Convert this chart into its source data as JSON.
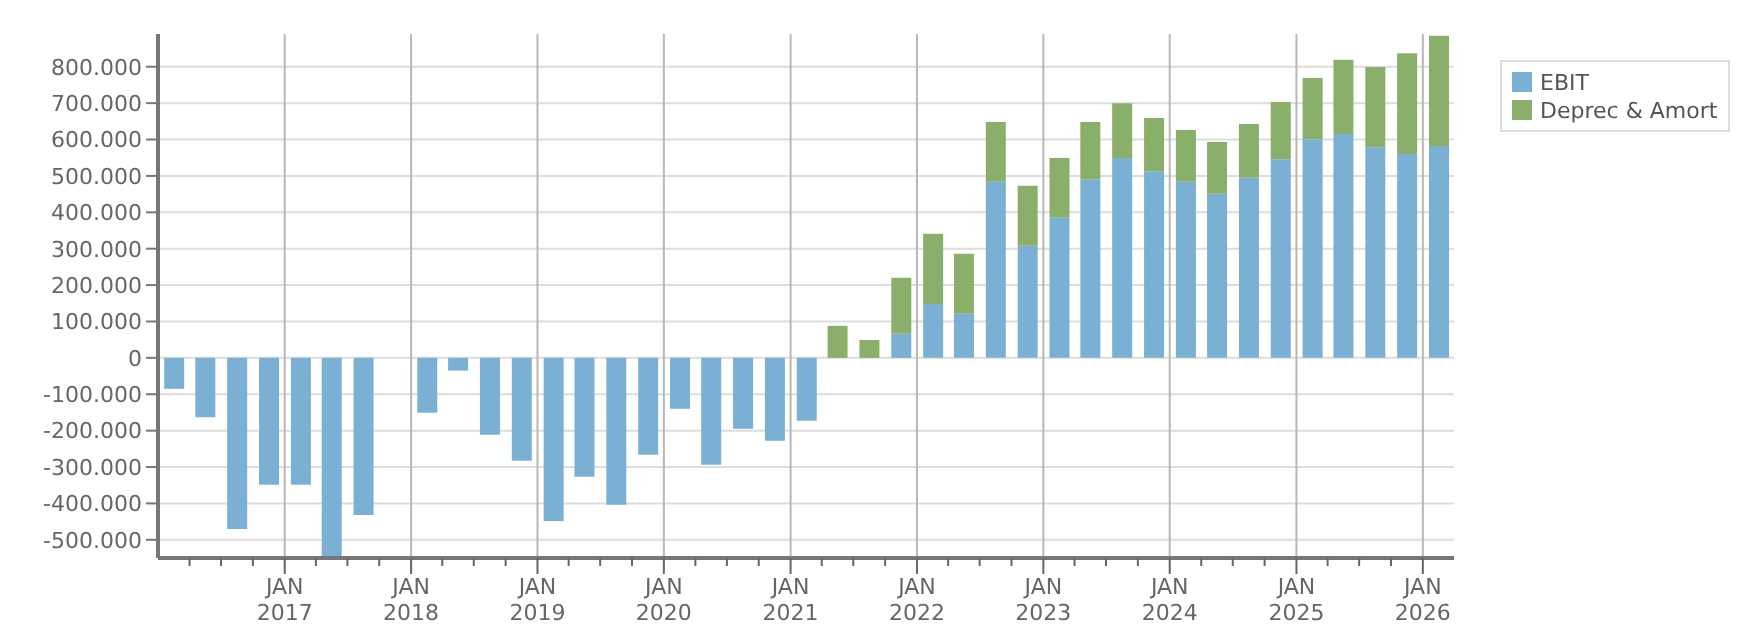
{
  "chart_data": {
    "type": "bar",
    "stacked": true,
    "x": [
      "2016-02-15",
      "2016-05-15",
      "2016-08-15",
      "2016-11-15",
      "2017-02-15",
      "2017-05-15",
      "2017-08-15",
      "2017-11-15",
      "2018-02-15",
      "2018-05-15",
      "2018-08-15",
      "2018-11-15",
      "2019-02-15",
      "2019-05-15",
      "2019-08-15",
      "2019-11-15",
      "2020-02-15",
      "2020-05-15",
      "2020-08-15",
      "2020-11-15",
      "2021-02-15",
      "2021-05-15",
      "2021-08-15",
      "2021-11-15",
      "2022-02-15",
      "2022-05-15",
      "2022-08-15",
      "2022-11-15",
      "2023-02-15",
      "2023-05-15",
      "2023-08-15",
      "2023-11-15",
      "2024-02-15",
      "2024-05-15",
      "2024-08-15",
      "2024-11-15",
      "2025-02-15",
      "2025-05-15",
      "2025-08-15",
      "2025-11-15",
      "2026-02-15"
    ],
    "series": [
      {
        "name": "EBIT",
        "color": "#7ab0d4",
        "values": [
          -85000,
          -163000,
          -470000,
          -349000,
          -349000,
          -550000,
          -432000,
          0,
          -151000,
          -35000,
          -211000,
          -283000,
          -448000,
          -327000,
          -404000,
          -266000,
          -140000,
          -294000,
          -195000,
          -228000,
          -173000,
          0,
          0,
          66000,
          148000,
          121000,
          484000,
          308000,
          385000,
          491000,
          549000,
          513000,
          484000,
          451000,
          495000,
          546000,
          601000,
          615000,
          579000,
          560000,
          582000
        ]
      },
      {
        "name": "Deprec & Amort",
        "color": "#8aaf6a",
        "values": [
          0,
          0,
          0,
          0,
          0,
          0,
          0,
          0,
          0,
          0,
          0,
          0,
          0,
          0,
          0,
          0,
          0,
          0,
          0,
          0,
          0,
          88000,
          49000,
          154000,
          193000,
          165000,
          164000,
          165000,
          164000,
          157000,
          151000,
          146000,
          142000,
          142000,
          148000,
          157000,
          168000,
          204000,
          220000,
          277000,
          303000
        ]
      }
    ],
    "xlim": [
      "2016-01-01",
      "2026-04-01"
    ],
    "xticks": [
      {
        "value": "2016-04-01",
        "label": null
      },
      {
        "value": "2016-07-01",
        "label": null
      },
      {
        "value": "2016-10-01",
        "label": null
      },
      {
        "value": "2017-01-01",
        "label": "JAN 2017"
      },
      {
        "value": "2017-04-01",
        "label": null
      },
      {
        "value": "2017-07-01",
        "label": null
      },
      {
        "value": "2017-10-01",
        "label": null
      },
      {
        "value": "2018-01-01",
        "label": "JAN 2018"
      },
      {
        "value": "2018-04-01",
        "label": null
      },
      {
        "value": "2018-07-01",
        "label": null
      },
      {
        "value": "2018-10-01",
        "label": null
      },
      {
        "value": "2019-01-01",
        "label": "JAN 2019"
      },
      {
        "value": "2019-04-01",
        "label": null
      },
      {
        "value": "2019-07-01",
        "label": null
      },
      {
        "value": "2019-10-01",
        "label": null
      },
      {
        "value": "2020-01-01",
        "label": "JAN 2020"
      },
      {
        "value": "2020-04-01",
        "label": null
      },
      {
        "value": "2020-07-01",
        "label": null
      },
      {
        "value": "2020-10-01",
        "label": null
      },
      {
        "value": "2021-01-01",
        "label": "JAN 2021"
      },
      {
        "value": "2021-04-01",
        "label": null
      },
      {
        "value": "2021-07-01",
        "label": null
      },
      {
        "value": "2021-10-01",
        "label": null
      },
      {
        "value": "2022-01-01",
        "label": "JAN 2022"
      },
      {
        "value": "2022-04-01",
        "label": null
      },
      {
        "value": "2022-07-01",
        "label": null
      },
      {
        "value": "2022-10-01",
        "label": null
      },
      {
        "value": "2023-01-01",
        "label": "JAN 2023"
      },
      {
        "value": "2023-04-01",
        "label": null
      },
      {
        "value": "2023-07-01",
        "label": null
      },
      {
        "value": "2023-10-01",
        "label": null
      },
      {
        "value": "2024-01-01",
        "label": "JAN 2024"
      },
      {
        "value": "2024-04-01",
        "label": null
      },
      {
        "value": "2024-07-01",
        "label": null
      },
      {
        "value": "2024-10-01",
        "label": null
      },
      {
        "value": "2025-01-01",
        "label": "JAN 2025"
      },
      {
        "value": "2025-04-01",
        "label": null
      },
      {
        "value": "2025-07-01",
        "label": null
      },
      {
        "value": "2025-10-01",
        "label": null
      },
      {
        "value": "2026-01-01",
        "label": "JAN 2026"
      }
    ],
    "ylim": [
      -550000,
      890000
    ],
    "yticks": [
      {
        "value": -500000,
        "label": "-500.000"
      },
      {
        "value": -400000,
        "label": "-400.000"
      },
      {
        "value": -300000,
        "label": "-300.000"
      },
      {
        "value": -200000,
        "label": "-200.000"
      },
      {
        "value": -100000,
        "label": "-100.000"
      },
      0,
      {
        "value": 100000,
        "label": "100.000"
      },
      {
        "value": 200000,
        "label": "200.000"
      },
      {
        "value": 300000,
        "label": "300.000"
      },
      {
        "value": 400000,
        "label": "400.000"
      },
      {
        "value": 500000,
        "label": "500.000"
      },
      {
        "value": 600000,
        "label": "600.000"
      },
      {
        "value": 700000,
        "label": "700.000"
      },
      {
        "value": 800000,
        "label": "800.000"
      }
    ],
    "grid": true,
    "legend": "top right"
  }
}
